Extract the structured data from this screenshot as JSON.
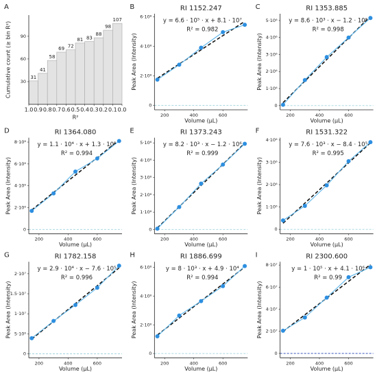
{
  "chart_data": [
    {
      "type": "histogram",
      "panel": "A",
      "xlabel": "R²",
      "ylabel": "Cumulative count (≥ bin R²)",
      "bins": [
        1.0,
        0.9,
        0.8,
        0.7,
        0.6,
        0.5,
        0.4,
        0.3,
        0.2,
        0.1,
        0.0
      ],
      "values": [
        31,
        41,
        58,
        69,
        72,
        81,
        83,
        88,
        98,
        107
      ],
      "color": "#e3e3e3",
      "xlim": [
        1.0,
        0.0
      ],
      "xticks": [
        {
          "value": 1,
          "label": "1.0"
        },
        0.9,
        0.8,
        0.7,
        0.6,
        0.5,
        0.4,
        0.3,
        0.2,
        0.1,
        {
          "value": 0,
          "label": "0.0"
        }
      ],
      "ylim": [
        0,
        118
      ],
      "yticks": [
        30,
        60,
        90
      ]
    },
    {
      "type": "scatter",
      "panel": "B",
      "title": "RI 1152.247",
      "equation": "y = 6.6 · 10⁵ · x + 8.1 · 10⁷",
      "r2": "R² = 0.982",
      "xlabel": "Volume (µL)",
      "ylabel": "Peak Area (Intensity)",
      "x": [
        150,
        300,
        450,
        600,
        750
      ],
      "values": [
        174000000,
        275000000,
        390000000,
        495000000,
        545000000
      ],
      "color": "#2d8fe0",
      "line_color": "#5ab4ea",
      "hline": 0,
      "hline_color": "#9fd3dd",
      "xlim": [
        130,
        770
      ],
      "xticks": [
        200,
        400,
        600
      ],
      "ylim": [
        -30000000,
        620000000
      ],
      "yticks": [
        0,
        {
          "value": 200000000,
          "label": "2·10⁸"
        },
        {
          "value": 400000000,
          "label": "4·10⁸"
        },
        {
          "value": 600000000,
          "label": "6·10⁸"
        }
      ]
    },
    {
      "type": "scatter",
      "panel": "C",
      "title": "RI 1353.885",
      "equation": "y = 8.6 · 10³ · x − 1.2 · 10⁶",
      "r2": "R² = 0.998",
      "xlabel": "Volume (µL)",
      "ylabel": "Peak Area (Intensity)",
      "x": [
        150,
        300,
        450,
        600,
        750
      ],
      "values": [
        50000,
        1500000,
        2850000,
        4000000,
        5150000
      ],
      "color": "#2d8fe0",
      "line_color": "#5ab4ea",
      "hline": 0,
      "hline_color": "#9fd3dd",
      "xlim": [
        130,
        770
      ],
      "xticks": [
        200,
        400,
        600
      ],
      "ylim": [
        -250000,
        5400000
      ],
      "yticks": [
        0,
        {
          "value": 1000000,
          "label": "1·10⁶"
        },
        {
          "value": 2000000,
          "label": "2·10⁶"
        },
        {
          "value": 3000000,
          "label": "3·10⁶"
        },
        {
          "value": 4000000,
          "label": "4·10⁶"
        },
        {
          "value": 5000000,
          "label": "5·10⁶"
        }
      ]
    },
    {
      "type": "scatter",
      "panel": "D",
      "title": "RI 1364.080",
      "equation": "y = 1.1 · 10⁴ · x + 1.3 · 10⁵",
      "r2": "R² = 0.994",
      "xlabel": "Volume (µL)",
      "ylabel": "Peak Area (Intensity)",
      "x": [
        150,
        300,
        450,
        600,
        750
      ],
      "values": [
        1700000,
        3300000,
        5300000,
        6500000,
        8100000
      ],
      "color": "#2d8fe0",
      "line_color": "#5ab4ea",
      "hline": 0,
      "hline_color": "#9fd3dd",
      "xlim": [
        130,
        770
      ],
      "xticks": [
        200,
        400,
        600
      ],
      "ylim": [
        -400000,
        8400000
      ],
      "yticks": [
        0,
        {
          "value": 2000000,
          "label": "2·10⁶"
        },
        {
          "value": 4000000,
          "label": "4·10⁶"
        },
        {
          "value": 6000000,
          "label": "6·10⁶"
        },
        {
          "value": 8000000,
          "label": "8·10⁶"
        }
      ]
    },
    {
      "type": "scatter",
      "panel": "E",
      "title": "RI 1373.243",
      "equation": "y = 8.2 · 10³ · x − 1.2 · 10⁶",
      "r2": "R² = 0.999",
      "xlabel": "Volume (µL)",
      "ylabel": "Peak Area (Intensity)",
      "x": [
        150,
        300,
        450,
        600,
        750
      ],
      "values": [
        50000,
        1300000,
        2650000,
        3750000,
        4950000
      ],
      "color": "#2d8fe0",
      "line_color": "#5ab4ea",
      "hline": 0,
      "hline_color": "#9fd3dd",
      "xlim": [
        130,
        770
      ],
      "xticks": [
        200,
        400,
        600
      ],
      "ylim": [
        -250000,
        5300000
      ],
      "yticks": [
        0,
        {
          "value": 1000000,
          "label": "1·10⁶"
        },
        {
          "value": 2000000,
          "label": "2·10⁶"
        },
        {
          "value": 3000000,
          "label": "3·10⁶"
        },
        {
          "value": 4000000,
          "label": "4·10⁶"
        },
        {
          "value": 5000000,
          "label": "5·10⁶"
        }
      ]
    },
    {
      "type": "scatter",
      "panel": "F",
      "title": "RI 1531.322",
      "equation": "y = 7.6 · 10³ · x − 8.4 · 10⁵",
      "r2": "R² = 0.995",
      "xlabel": "Volume (µL)",
      "ylabel": "Peak Area (Intensity)",
      "x": [
        150,
        300,
        450,
        600,
        750
      ],
      "values": [
        400000,
        1050000,
        1970000,
        3050000,
        3900000
      ],
      "color": "#2d8fe0",
      "line_color": "#5ab4ea",
      "hline": 0,
      "hline_color": "#9fd3dd",
      "xlim": [
        130,
        770
      ],
      "xticks": [
        200,
        400,
        600
      ],
      "ylim": [
        -200000,
        4100000
      ],
      "yticks": [
        0,
        {
          "value": 1000000,
          "label": "1·10⁶"
        },
        {
          "value": 2000000,
          "label": "2·10⁶"
        },
        {
          "value": 3000000,
          "label": "3·10⁶"
        },
        {
          "value": 4000000,
          "label": "4·10⁶"
        }
      ]
    },
    {
      "type": "scatter",
      "panel": "G",
      "title": "RI 1782.158",
      "equation": "y = 2.9 · 10⁴ · x − 7.6 · 10⁵",
      "r2": "R² = 0.996",
      "xlabel": "Volume (µL)",
      "ylabel": "Peak Area (Intensity)",
      "x": [
        150,
        300,
        450,
        600,
        750
      ],
      "values": [
        3900000,
        8200000,
        12200000,
        16500000,
        22000000
      ],
      "color": "#2d8fe0",
      "line_color": "#5ab4ea",
      "hline": 0,
      "hline_color": "#9fd3dd",
      "xlim": [
        130,
        770
      ],
      "xticks": [
        200,
        400,
        600
      ],
      "ylim": [
        -1000000,
        23000000
      ],
      "yticks": [
        0,
        {
          "value": 5000000,
          "label": "5·10⁶"
        },
        {
          "value": 10000000,
          "label": "1·10⁷"
        },
        {
          "value": 15000000,
          "label": "1.5·10⁷"
        },
        {
          "value": 20000000,
          "label": "2·10⁷"
        }
      ]
    },
    {
      "type": "scatter",
      "panel": "H",
      "title": "RI 1886.699",
      "equation": "y = 8 · 10³ · x + 4.9 · 10⁴",
      "r2": "R² = 0.994",
      "xlabel": "Volume (µL)",
      "ylabel": "Peak Area (Intensity)",
      "x": [
        150,
        300,
        450,
        600,
        750
      ],
      "values": [
        1200000,
        2650000,
        3650000,
        4700000,
        6100000
      ],
      "color": "#2d8fe0",
      "line_color": "#5ab4ea",
      "hline": 0,
      "hline_color": "#9fd3dd",
      "xlim": [
        130,
        770
      ],
      "xticks": [
        200,
        400,
        600
      ],
      "ylim": [
        -300000,
        6400000
      ],
      "yticks": [
        0,
        {
          "value": 2000000,
          "label": "2·10⁶"
        },
        {
          "value": 4000000,
          "label": "4·10⁶"
        },
        {
          "value": 6000000,
          "label": "6·10⁶"
        }
      ]
    },
    {
      "type": "scatter",
      "panel": "I",
      "title": "RI 2300.600",
      "equation": "y = 1 · 10⁵ · x + 4.1 · 10⁶",
      "r2": "R² = 0.99",
      "xlabel": "Volume (µL)",
      "ylabel": "Peak Area (Intensity)",
      "x": [
        150,
        300,
        450,
        600,
        750
      ],
      "values": [
        20500000,
        32500000,
        50500000,
        69000000,
        78000000
      ],
      "color": "#2d8fe0",
      "line_color": "#5ab4ea",
      "hline": 0,
      "hline_color": "#1f3fb0",
      "xlim": [
        130,
        770
      ],
      "xticks": [
        200,
        400,
        600
      ],
      "ylim": [
        -4000000,
        83000000
      ],
      "yticks": [
        0,
        {
          "value": 20000000,
          "label": "2·10⁷"
        },
        {
          "value": 40000000,
          "label": "4·10⁷"
        },
        {
          "value": 60000000,
          "label": "6·10⁷"
        },
        {
          "value": 80000000,
          "label": "8·10⁷"
        }
      ]
    }
  ]
}
